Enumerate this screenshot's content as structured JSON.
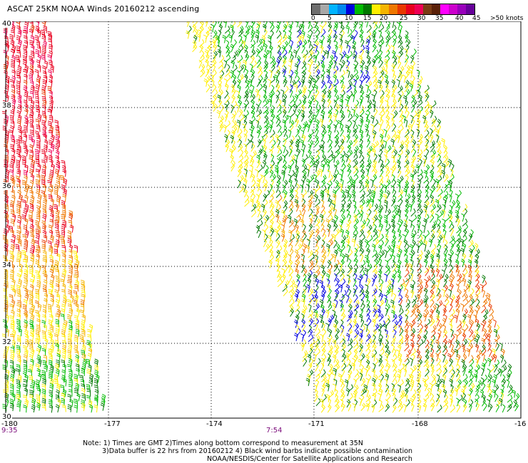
{
  "title": "ASCAT 25KM NOAA Winds 20160212 ascending",
  "legend": {
    "colors": [
      "#6e6e6e",
      "#a8a8a8",
      "#00b4ff",
      "#0088ee",
      "#0000dd",
      "#00bb00",
      "#007700",
      "#ffee00",
      "#f5b400",
      "#ee7700",
      "#e83800",
      "#e8001e",
      "#ee0055",
      "#7a3b14",
      "#5a2008",
      "#ff00ff",
      "#cc00cc",
      "#9900bb",
      "#660099"
    ],
    "tick_labels": [
      "0",
      "5",
      "10",
      "15",
      "20",
      "25",
      "30",
      "35",
      "40",
      "45",
      ">50 knots"
    ]
  },
  "map": {
    "lat_labels": [
      "40",
      "38",
      "36",
      "34",
      "32",
      "30"
    ],
    "lon_labels": [
      "-180",
      "-177",
      "-174",
      "-171",
      "-168",
      "-16"
    ],
    "times": [
      "9:35",
      "7:54"
    ]
  },
  "notes": {
    "line1": "Note: 1) Times are GMT 2)Times along bottom correspond to measurement at 35N",
    "line2": "3)Data buffer is 22 hrs from 20160212 4) Black wind barbs indicate possible contamination",
    "line3": "NOAA/NESDIS/Center for Satellite Applications and Research"
  }
}
